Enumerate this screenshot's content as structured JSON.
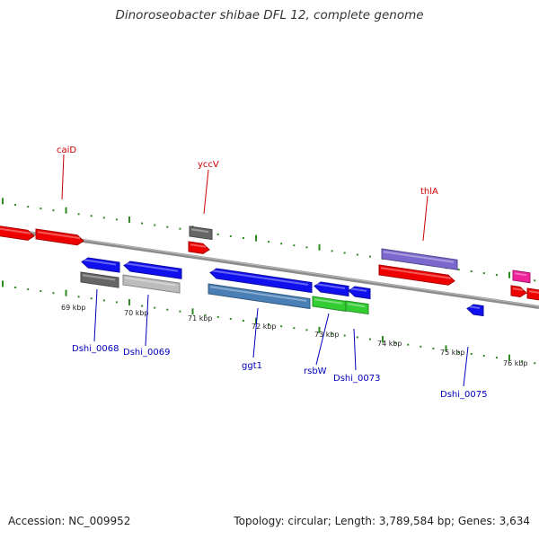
{
  "title": "Dinoroseobacter shibae DFL 12, complete genome",
  "footer": {
    "accession": "Accession: NC_009952",
    "summary": "Topology: circular; Length: 3,789,584 bp; Genes: 3,634"
  },
  "colors": {
    "backbone": "#8c8c8c",
    "tick": "#2e8b22",
    "label_top": "#cc0000",
    "label_bottom": "#0000bb",
    "gene_red": "#ee0000",
    "gene_blue": "#1010ee",
    "gene_dark_gray": "#666666",
    "gene_light_gray": "#bcbcbc",
    "gene_steel": "#4a7fb5",
    "gene_green": "#33cc33",
    "gene_purple": "#7b68cc",
    "gene_pink": "#ee2299"
  },
  "kbp_labels": [
    "69 kbp",
    "70 kbp",
    "71 kbp",
    "72 kbp",
    "73 kbp",
    "74 kbp",
    "75 kbp",
    "76 kbp"
  ],
  "gene_labels": {
    "top": [
      "caiD",
      "yccV",
      "thlA"
    ],
    "bottom": [
      "Dshi_0068",
      "Dshi_0069",
      "ggt1",
      "rsbW",
      "Dshi_0073",
      "Dshi_0075"
    ]
  }
}
